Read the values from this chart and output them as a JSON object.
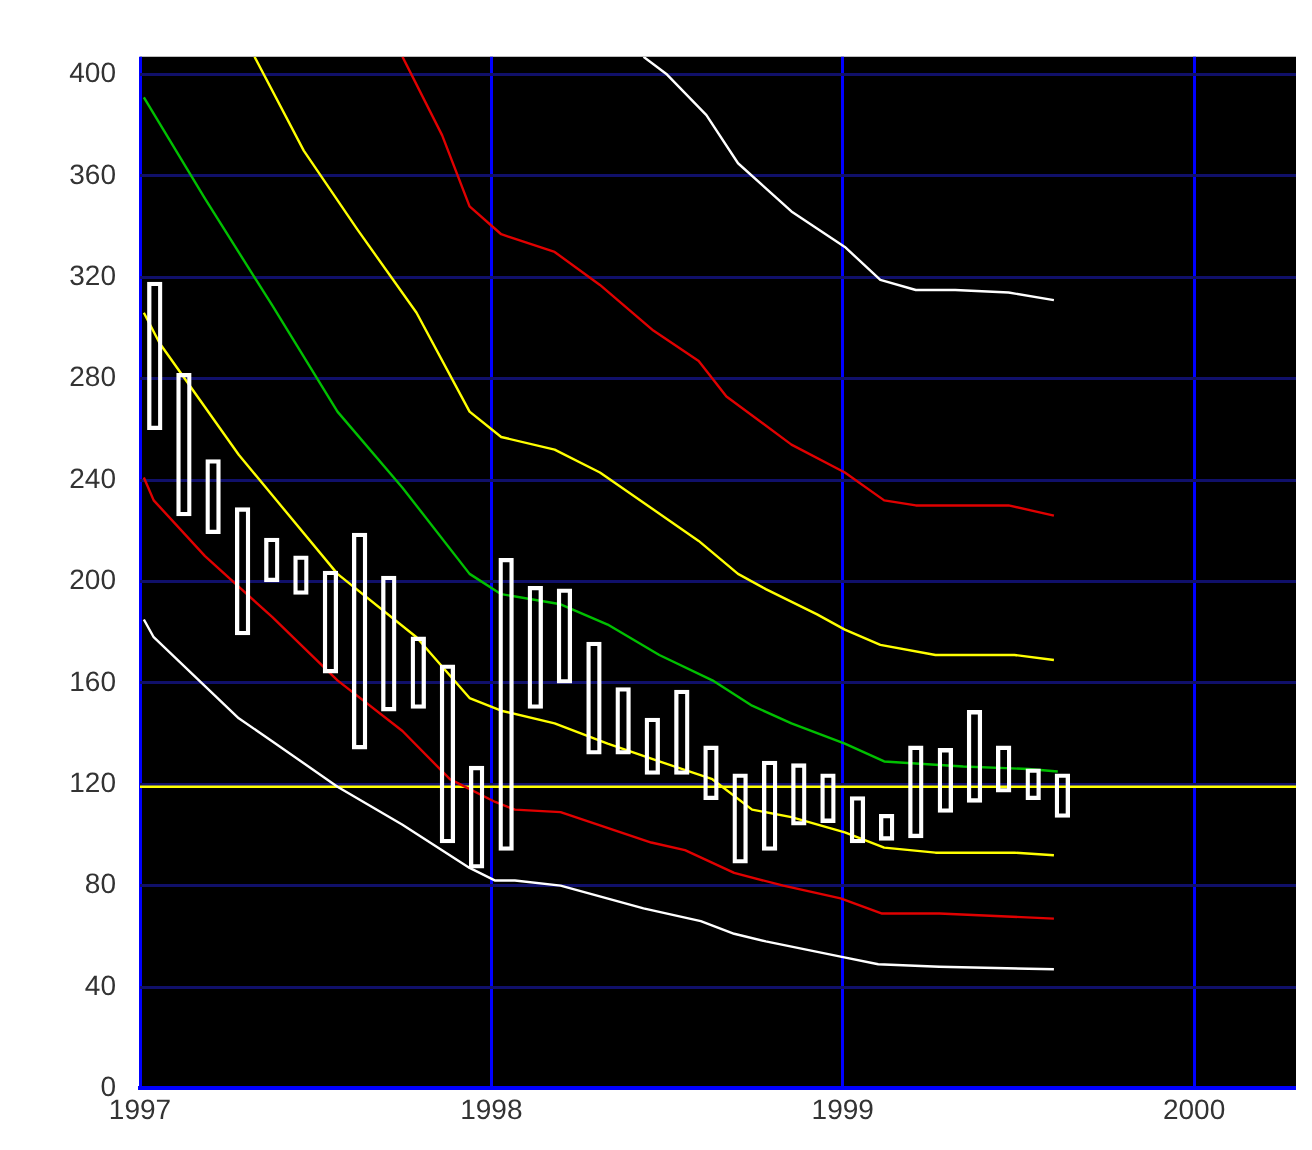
{
  "chart_data": {
    "type": "bar",
    "x": [
      1997.042,
      1997.125,
      1997.208,
      1997.292,
      1997.375,
      1997.458,
      1997.542,
      1997.625,
      1997.708,
      1997.792,
      1997.875,
      1997.958,
      1998.042,
      1998.125,
      1998.208,
      1998.292,
      1998.375,
      1998.458,
      1998.542,
      1998.625,
      1998.708,
      1998.792,
      1998.875,
      1998.958,
      1999.042,
      1999.125,
      1999.208,
      1999.292,
      1999.375,
      1999.458,
      1999.542,
      1999.625
    ],
    "xlim": [
      1997,
      2000.29
    ],
    "xticks": [
      1997,
      1998,
      1999,
      2000
    ],
    "ylim": [
      0,
      407
    ],
    "yticks": [
      0,
      40,
      80,
      120,
      160,
      200,
      240,
      280,
      320,
      360,
      400
    ],
    "grid": true,
    "ref_lines": [
      {
        "axis": "y",
        "value": 119,
        "color": "#ffff00"
      }
    ],
    "series": [
      {
        "color": "#ffffff",
        "base": [
          260,
          226,
          219,
          179,
          200,
          195,
          164,
          134,
          149,
          150,
          97,
          87,
          94,
          150,
          160,
          132,
          132,
          124,
          124,
          114,
          89,
          94,
          104,
          105,
          97,
          98,
          99,
          109,
          113,
          117,
          114,
          107
        ],
        "values": [
          58,
          56,
          29,
          50,
          17,
          15,
          40,
          85,
          53,
          28,
          70,
          40,
          115,
          48,
          37,
          44,
          26,
          22,
          33,
          21,
          35,
          35,
          24,
          19,
          18,
          10,
          36,
          25,
          36,
          18,
          12,
          17
        ]
      },
      {
        "type": "line",
        "color": "#ffffff",
        "x": [
          1997.011,
          1997.039,
          1997.281,
          1997.376,
          1997.562,
          1997.747,
          1997.938,
          1998.011,
          1998.067,
          1998.197,
          1998.433,
          1998.596,
          1998.691,
          1998.781,
          1998.994,
          1999.101,
          1999.275,
          1999.601
        ],
        "values": [
          185,
          178,
          146,
          137,
          119,
          104,
          87,
          82,
          82,
          80,
          71,
          66,
          61,
          58,
          52,
          49,
          48,
          47
        ]
      },
      {
        "type": "line",
        "color": "#e00000",
        "x": [
          1997.011,
          1997.039,
          1997.185,
          1997.376,
          1997.562,
          1997.747,
          1997.882,
          1998.011,
          1998.067,
          1998.197,
          1998.455,
          1998.551,
          1998.691,
          1998.831,
          1998.994,
          1999.112,
          1999.275,
          1999.601
        ],
        "values": [
          241,
          232,
          210,
          186,
          161,
          141,
          122,
          113,
          110,
          109,
          97,
          94,
          85,
          80,
          75,
          69,
          69,
          67
        ]
      },
      {
        "type": "line",
        "color": "#ffff00",
        "x": [
          1997.011,
          1997.056,
          1997.281,
          1997.562,
          1997.787,
          1997.938,
          1998.028,
          1998.18,
          1998.331,
          1998.478,
          1998.629,
          1998.742,
          1998.854,
          1999.006,
          1999.118,
          1999.264,
          1999.489,
          1999.601
        ],
        "values": [
          306,
          294,
          250,
          203,
          178,
          154,
          149,
          144,
          136,
          129,
          122,
          110,
          107,
          101,
          95,
          93,
          93,
          92
        ]
      },
      {
        "type": "line",
        "color": "#00c000",
        "x": [
          1997.011,
          1997.185,
          1997.376,
          1997.562,
          1997.747,
          1997.938,
          1998.028,
          1998.197,
          1998.331,
          1998.478,
          1998.629,
          1998.742,
          1998.854,
          1999.006,
          1999.118,
          1999.343,
          1999.528,
          1999.612
        ],
        "values": [
          391,
          351,
          309,
          267,
          237,
          203,
          195,
          191,
          183,
          171,
          161,
          151,
          144,
          136,
          129,
          127,
          126,
          125
        ]
      },
      {
        "type": "line",
        "color": "#ffff00",
        "x": [
          1997.326,
          1997.466,
          1997.618,
          1997.787,
          1997.938,
          1998.028,
          1998.18,
          1998.309,
          1998.59,
          1998.702,
          1998.781,
          1998.927,
          1999.006,
          1999.107,
          1999.264,
          1999.489,
          1999.601
        ],
        "values": [
          407,
          370,
          339,
          306,
          267,
          257,
          252,
          243,
          216,
          203,
          197,
          187,
          181,
          175,
          171,
          171,
          169
        ]
      },
      {
        "type": "line",
        "color": "#e00000",
        "x": [
          1997.747,
          1997.86,
          1997.938,
          1998.028,
          1998.18,
          1998.309,
          1998.461,
          1998.59,
          1998.669,
          1998.854,
          1999.006,
          1999.118,
          1999.208,
          1999.472,
          1999.601
        ],
        "values": [
          407,
          376,
          348,
          337,
          330,
          317,
          299,
          287,
          273,
          254,
          243,
          232,
          230,
          230,
          226
        ]
      },
      {
        "type": "line",
        "color": "#ffffff",
        "x": [
          1998.433,
          1998.5,
          1998.612,
          1998.702,
          1998.854,
          1999.006,
          1999.107,
          1999.208,
          1999.32,
          1999.472,
          1999.601
        ],
        "values": [
          407,
          400,
          384,
          365,
          346,
          332,
          319,
          315,
          315,
          314,
          311
        ]
      }
    ]
  }
}
